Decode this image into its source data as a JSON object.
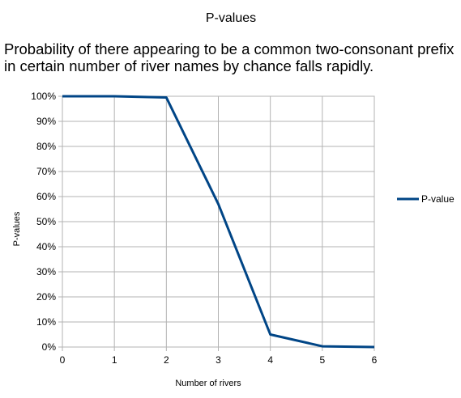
{
  "chart_data": {
    "type": "line",
    "title": "P-values",
    "subtitle": [
      "Probability of there appearing to be a common two-consonant prefix",
      "in certain number of river names by chance falls rapidly."
    ],
    "xlabel": "Number of rivers",
    "ylabel": "P-values",
    "x": [
      0,
      1,
      2,
      3,
      4,
      5,
      6
    ],
    "xlim": [
      0,
      6
    ],
    "ylim": [
      0,
      1
    ],
    "xticks": [
      "0",
      "1",
      "2",
      "3",
      "4",
      "5",
      "6"
    ],
    "yticks": [
      "0%",
      "10%",
      "20%",
      "30%",
      "40%",
      "50%",
      "60%",
      "70%",
      "80%",
      "90%",
      "100%"
    ],
    "grid": true,
    "legend": "right",
    "series": [
      {
        "name": "P-value",
        "color": "#004586",
        "values": [
          1.0,
          1.0,
          0.995,
          0.57,
          0.05,
          0.003,
          0.0
        ]
      }
    ]
  }
}
